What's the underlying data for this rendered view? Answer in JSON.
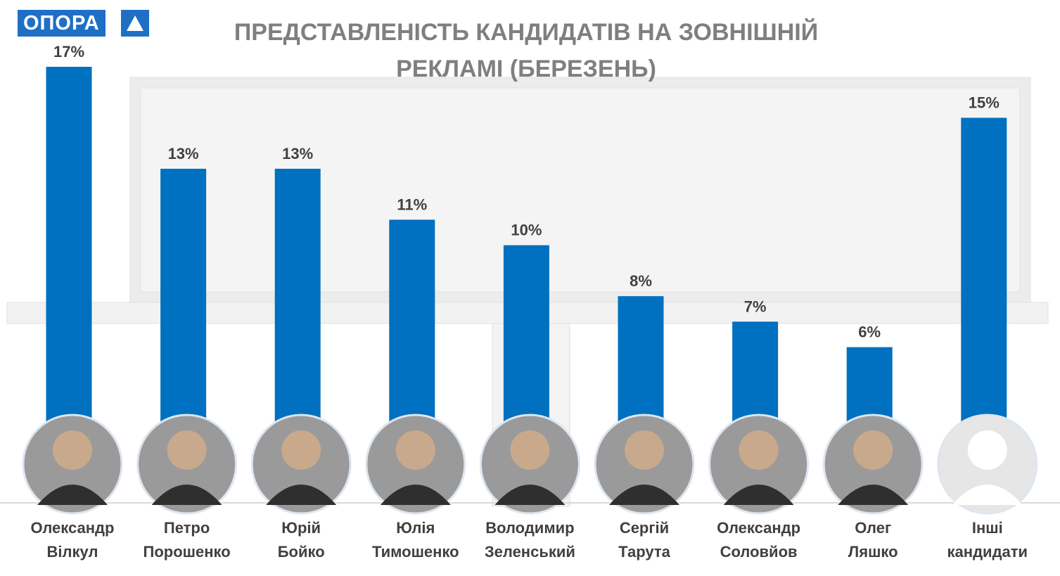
{
  "logo": "ОПОРА",
  "chart_data": {
    "type": "bar",
    "title": "ПРЕДСТАВЛЕНІСТЬ КАНДИДАТІВ НА ЗОВНІШНІЙ РЕКЛАМІ (БЕРЕЗЕНЬ)",
    "categories": [
      "Олександр Вілкул",
      "Петро Порошенко",
      "Юрій Бойко",
      "Юлія Тимошенко",
      "Володимир Зеленський",
      "Сергій Тарута",
      "Олександр Соловйов",
      "Олег Ляшко",
      "Інші кандидати"
    ],
    "values": [
      17,
      13,
      13,
      11,
      10,
      8,
      7,
      6,
      15
    ],
    "value_labels": [
      "17%",
      "13%",
      "13%",
      "11%",
      "10%",
      "8%",
      "7%",
      "6%",
      "15%"
    ],
    "color": "#0070c0"
  }
}
